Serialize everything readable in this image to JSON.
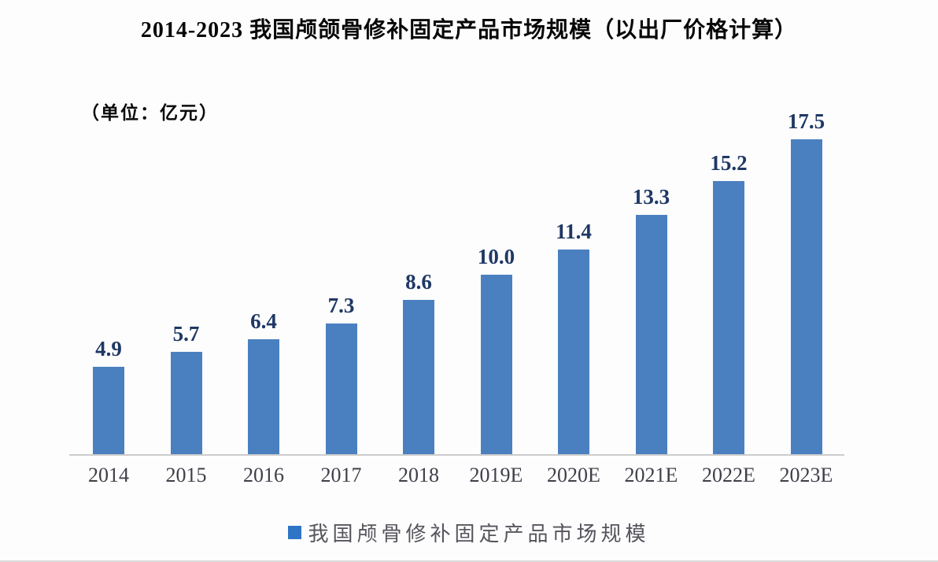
{
  "page": {
    "title": "2014-2023 我国颅颌骨修补固定产品市场规模（以出厂价格计算）",
    "unit_label": "（单位：亿元）"
  },
  "legend": {
    "marker_color": "#2e75c8",
    "label": "我国颅骨修补固定产品市场规模"
  },
  "chart_data": {
    "type": "bar",
    "title": "2014-2023 我国颅颌骨修补固定产品市场规模（以出厂价格计算）",
    "unit": "亿元",
    "categories": [
      "2014",
      "2015",
      "2016",
      "2017",
      "2018",
      "2019E",
      "2020E",
      "2021E",
      "2022E",
      "2023E"
    ],
    "values": [
      4.9,
      5.7,
      6.4,
      7.3,
      8.6,
      10.0,
      11.4,
      13.3,
      15.2,
      17.5
    ],
    "value_labels": [
      "4.9",
      "5.7",
      "6.4",
      "7.3",
      "8.6",
      "10.0",
      "11.4",
      "13.3",
      "15.2",
      "17.5"
    ],
    "series_name": "我国颅骨修补固定产品市场规模",
    "bar_color": "#4a80c0",
    "value_label_color": "#1f3864",
    "ylim": [
      0,
      20
    ],
    "grid": false,
    "y_axis_visible": false,
    "legend_position": "bottom"
  }
}
